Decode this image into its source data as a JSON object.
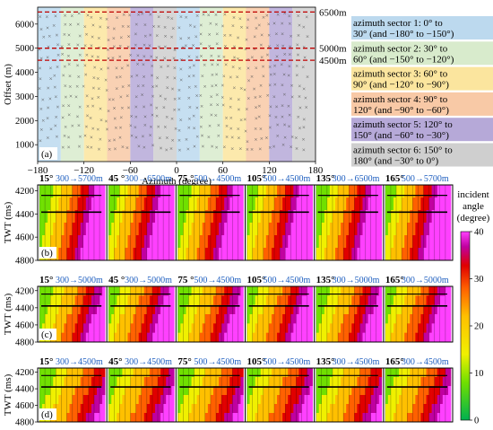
{
  "colors": {
    "sectors": [
      "#bcd9ee",
      "#d8ebcc",
      "#fbe59e",
      "#f8c9a6",
      "#b6a9d8",
      "#cfcfcf"
    ],
    "dashed": "#c00000",
    "blue_text": "#2060c0",
    "bg": "#ffffff"
  },
  "top": {
    "panel_label": "(a)",
    "xlabel": "Azimuth (degree)",
    "ylabel": "Offset (m)",
    "xticks": [
      -180,
      -120,
      -60,
      0,
      60,
      120,
      180
    ],
    "yticks": [
      1000,
      2000,
      3000,
      4000,
      5000,
      6000
    ],
    "xlim": [
      -180,
      180
    ],
    "ylim": [
      300,
      6700
    ],
    "dashed_lines": [
      {
        "value": 6500,
        "label": "6500m"
      },
      {
        "value": 5000,
        "label": "5000m"
      },
      {
        "value": 4500,
        "label": "4500m"
      }
    ]
  },
  "legend": [
    {
      "text": "azimuth sector 1: 0° to 30° (and −180° to −150°)"
    },
    {
      "text": "azimuth sector 2: 30° to 60° (and −150° to −120°)"
    },
    {
      "text": "azimuth sector 3: 60° to 90° (and −120° to −90°)"
    },
    {
      "text": "azimuth sector 4: 90° to 120° (and −90° to −60°)"
    },
    {
      "text": "azimuth sector 5: 120° to 150° (and −60° to −30°)"
    },
    {
      "text": "azimuth sector 6: 150° to 180° (and −30° to 0°)"
    }
  ],
  "gathers": {
    "ylabel": "TWT (ms)",
    "yticks": [
      4200,
      4400,
      4600,
      4800
    ],
    "ylim": [
      4150,
      4800
    ],
    "panels": [
      {
        "label": "(b)",
        "headers": [
          {
            "az": "15°",
            "range": "300→5700m"
          },
          {
            "az": "45 °",
            "range": "300→6500m"
          },
          {
            "az": "75 °",
            "range": "500→4500m"
          },
          {
            "az": "105°",
            "range": "500→4500m"
          },
          {
            "az": "135°",
            "range": "300→6500m"
          },
          {
            "az": "165°",
            "range": "500→5700m"
          }
        ]
      },
      {
        "label": "(c)",
        "headers": [
          {
            "az": "15°",
            "range": "300→5000m"
          },
          {
            "az": "45 °",
            "range": "300→5000m"
          },
          {
            "az": "75 °",
            "range": "500→4500m"
          },
          {
            "az": "105°",
            "range": "500→4500m"
          },
          {
            "az": "135°",
            "range": "300→5000m"
          },
          {
            "az": "165°",
            "range": "300→5000m"
          }
        ]
      },
      {
        "label": "(d)",
        "headers": [
          {
            "az": "15°",
            "range": "300→4500m"
          },
          {
            "az": "45°",
            "range": "300→4500m"
          },
          {
            "az": "75°",
            "range": "500→4500m"
          },
          {
            "az": "105°",
            "range": "500→4500m"
          },
          {
            "az": "135°",
            "range": "300→4500m"
          },
          {
            "az": "165°",
            "range": "300→4500m"
          }
        ]
      }
    ]
  },
  "colorbar": {
    "title": [
      "incident",
      "angle",
      "(degree)"
    ],
    "ticks": [
      0,
      10,
      20,
      30,
      40
    ],
    "range": [
      0,
      40
    ]
  },
  "chart_data": {
    "type": "scatter",
    "xlabel": "Azimuth (degree)",
    "ylabel": "Offset (m)",
    "xlim": [
      -180,
      180
    ],
    "ylim": [
      300,
      6700
    ],
    "reference_lines_y": [
      6500,
      5000,
      4500
    ],
    "sectors": [
      {
        "name": "azimuth sector 1",
        "ranges": [
          [
            0,
            30
          ],
          [
            -180,
            -150
          ]
        ]
      },
      {
        "name": "azimuth sector 2",
        "ranges": [
          [
            30,
            60
          ],
          [
            -150,
            -120
          ]
        ]
      },
      {
        "name": "azimuth sector 3",
        "ranges": [
          [
            60,
            90
          ],
          [
            -120,
            -90
          ]
        ]
      },
      {
        "name": "azimuth sector 4",
        "ranges": [
          [
            90,
            120
          ],
          [
            -90,
            -60
          ]
        ]
      },
      {
        "name": "azimuth sector 5",
        "ranges": [
          [
            120,
            150
          ],
          [
            -60,
            -30
          ]
        ]
      },
      {
        "name": "azimuth sector 6",
        "ranges": [
          [
            150,
            180
          ],
          [
            -30,
            0
          ]
        ]
      }
    ]
  }
}
